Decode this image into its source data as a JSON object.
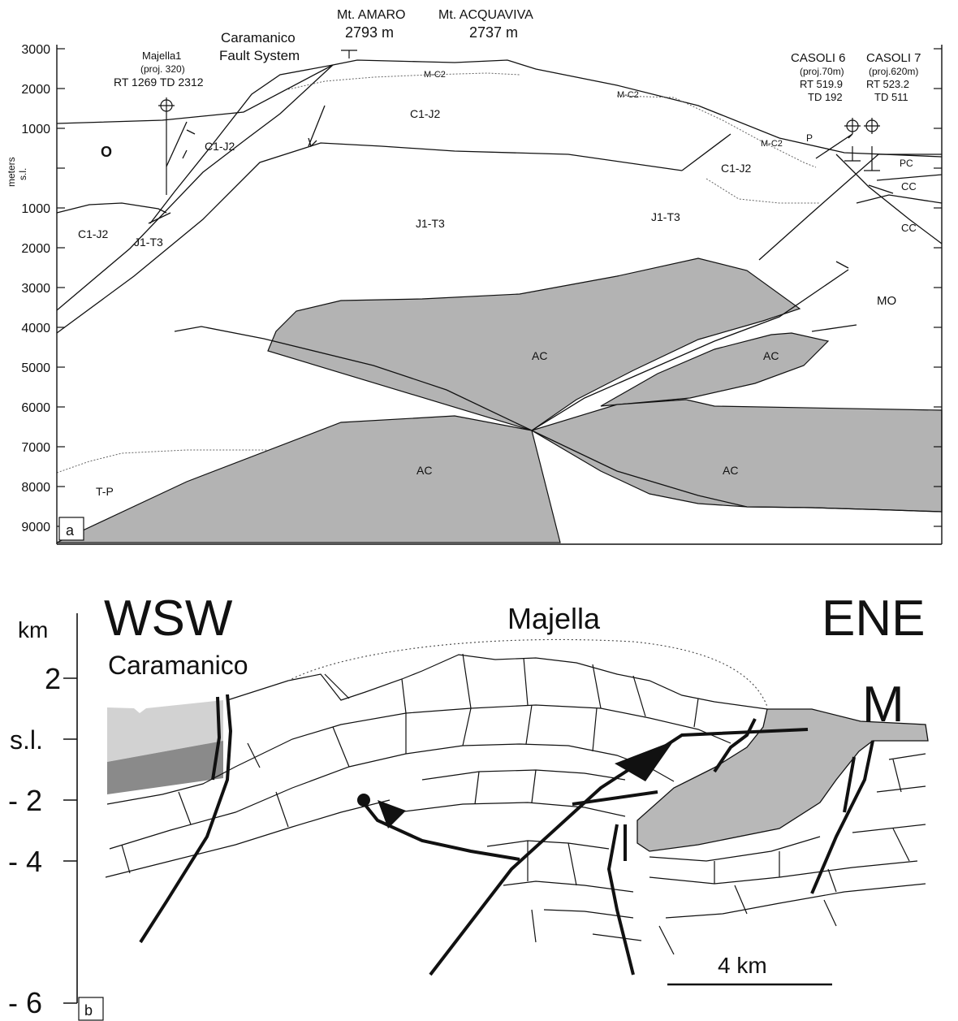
{
  "panel_a": {
    "panel_label": "a",
    "axis_label": "meters s.l.",
    "axis_label_line1": "meters",
    "axis_label_line2": "s.l.",
    "ticks": [
      "3000",
      "2000",
      "1000",
      "s.l.",
      "1000",
      "2000",
      "3000",
      "4000",
      "5000",
      "6000",
      "7000",
      "8000",
      "9000"
    ],
    "peaks": [
      {
        "name": "Mt. AMARO",
        "elevation": "2793 m"
      },
      {
        "name": "Mt. ACQUAVIVA",
        "elevation": "2737 m"
      }
    ],
    "fault_system": {
      "line1": "Caramanico",
      "line2": "Fault System"
    },
    "well_majella": {
      "line1": "Majella1",
      "line2": "(proj. 320)",
      "line3": "RT 1269 TD 2312"
    },
    "well_casoli6": {
      "line1": "CASOLI 6",
      "line2": "(proj.70m)",
      "line3": "RT 519.9",
      "line4": "TD 192"
    },
    "well_casoli7": {
      "line1": "CASOLI 7",
      "line2": "(proj.620m)",
      "line3": "RT 523.2",
      "line4": "TD 511"
    },
    "units": {
      "o": "O",
      "c1j2_left": "C1-J2",
      "c1j2_fault": "C1-J2",
      "c1j2_center": "C1-J2",
      "c1j2_right": "C1-J2",
      "mc2_1": "M-C2",
      "mc2_2": "M-C2",
      "mc2_3": "M-C2",
      "p": "P",
      "pc": "PC",
      "cc1": "CC",
      "cc2": "CC",
      "j1t3_left": "J1-T3",
      "j1t3_center": "J1-T3",
      "j1t3_right": "J1-T3",
      "mo": "MO",
      "ac_upper": "AC",
      "ac_right": "AC",
      "ac_lower": "AC",
      "ac_lower_right": "AC",
      "tp": "T-P"
    }
  },
  "panel_b": {
    "panel_label": "b",
    "axis_unit": "km",
    "ticks": [
      "2",
      "s.l.",
      "- 2",
      "- 4",
      "- 6"
    ],
    "wsw": "WSW",
    "ene": "ENE",
    "caramanico": "Caramanico",
    "majella": "Majella",
    "m_label": "M",
    "scale_bar": "4 km"
  },
  "colors": {
    "ac_fill": "#b3b3b3",
    "m_fill": "#b8b8b8",
    "caramanico_light": "#d2d2d2",
    "caramanico_dark": "#8a8a8a",
    "line": "#111111"
  }
}
